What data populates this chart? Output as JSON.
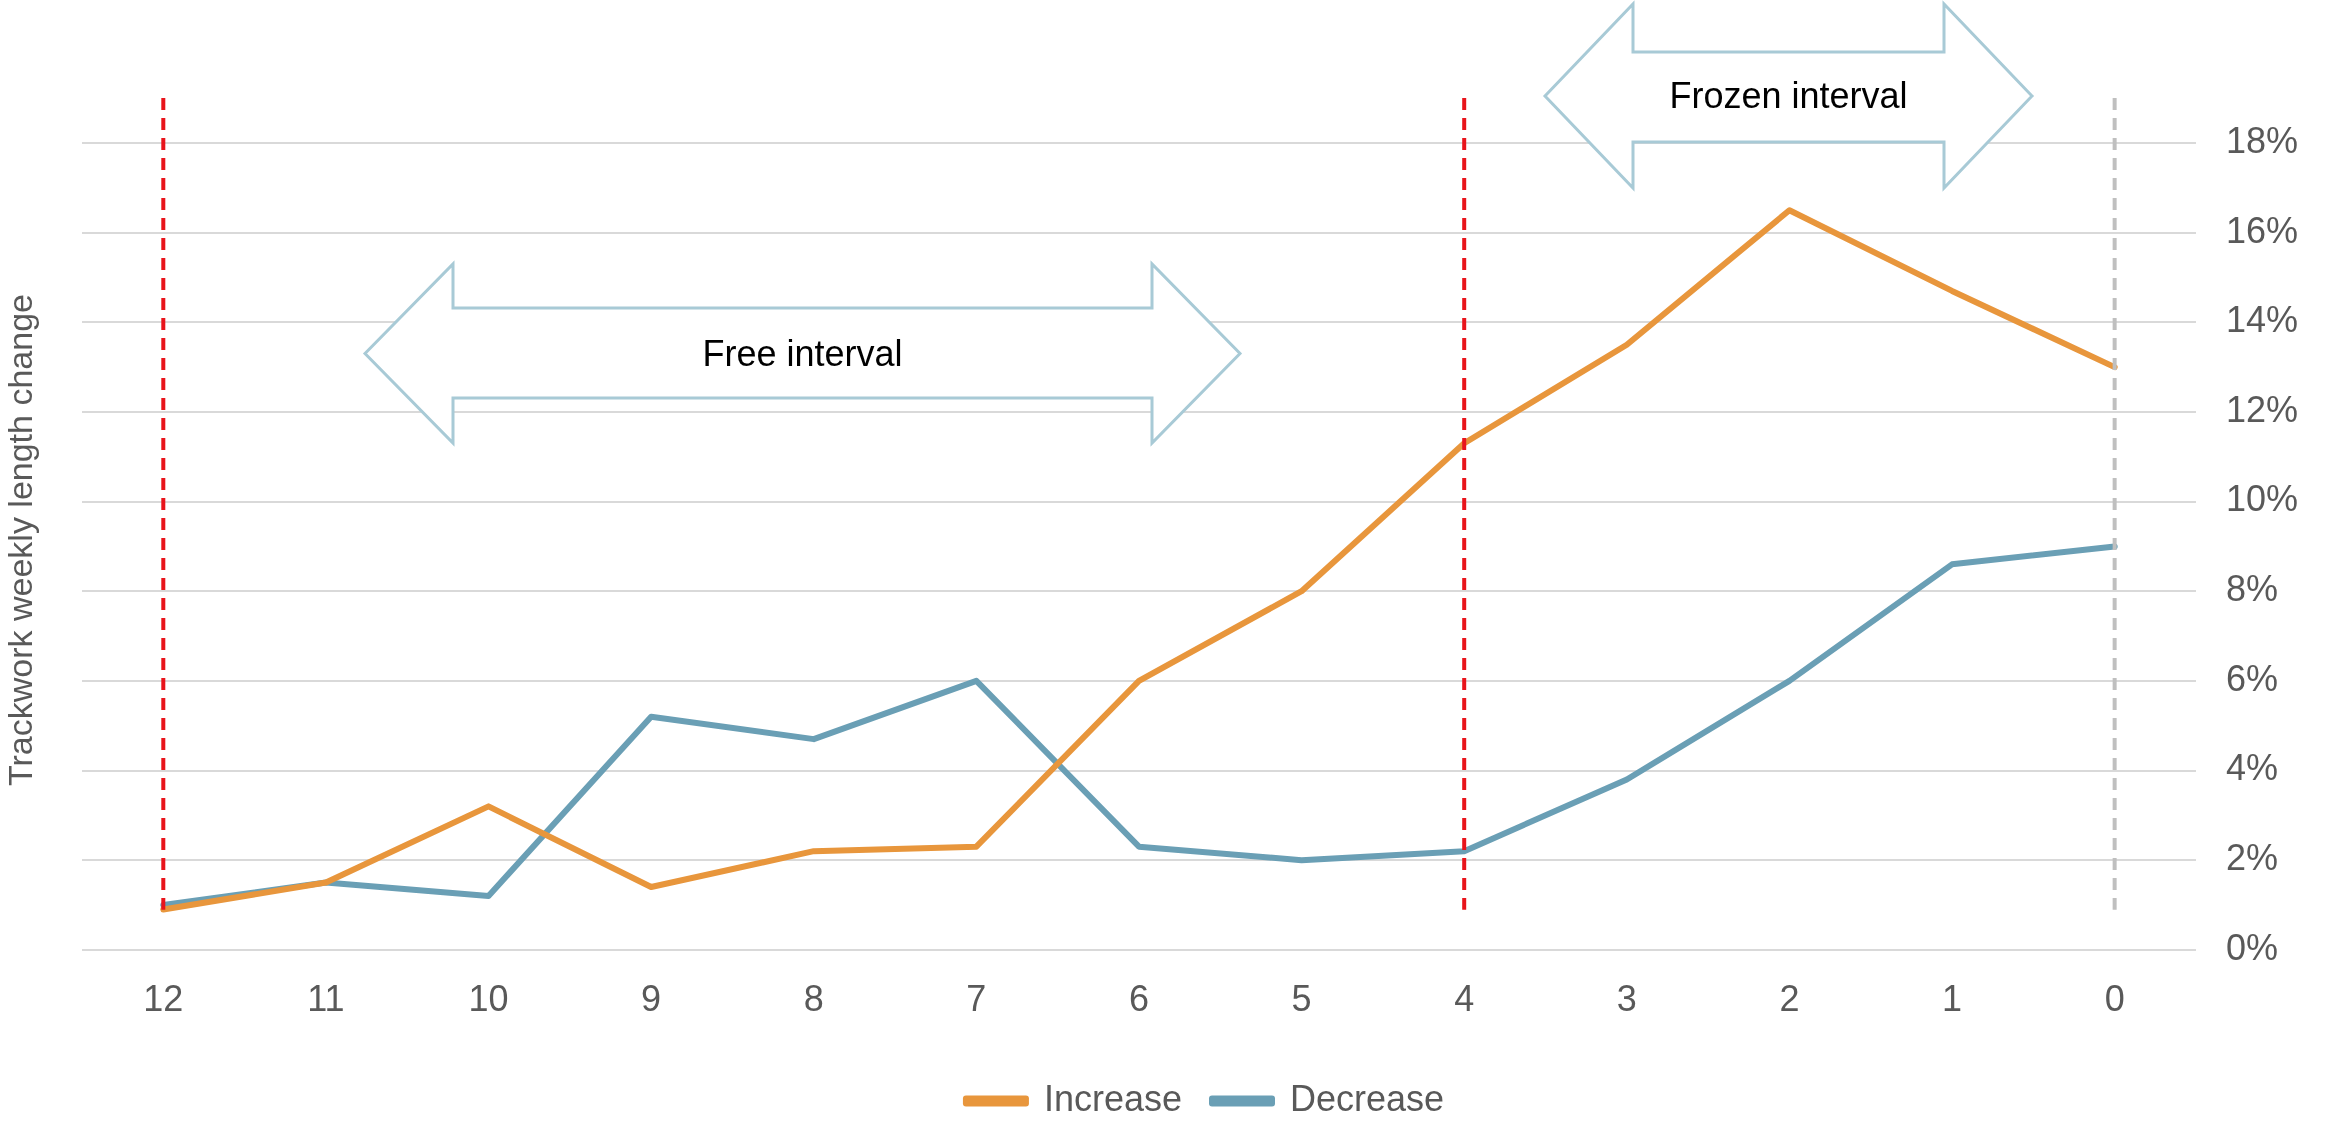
{
  "chart_data": {
    "type": "line",
    "ylabel": "Trackwork weekly length change",
    "categories": [
      "12",
      "11",
      "10",
      "9",
      "8",
      "7",
      "6",
      "5",
      "4",
      "3",
      "2",
      "1",
      "0"
    ],
    "series": [
      {
        "name": "Increase",
        "color": "#e8963c",
        "values": [
          0.9,
          1.5,
          3.2,
          1.4,
          2.2,
          2.3,
          6.0,
          8.0,
          11.3,
          13.5,
          16.5,
          14.7,
          13.0
        ]
      },
      {
        "name": "Decrease",
        "color": "#6a9fb5",
        "values": [
          1.0,
          1.5,
          1.2,
          5.2,
          4.7,
          6.0,
          2.3,
          2.0,
          2.2,
          3.8,
          6.0,
          8.6,
          9.0
        ]
      }
    ],
    "ylim": [
      0,
      18
    ],
    "yticks": [
      {
        "value": 0,
        "label": "0%"
      },
      {
        "value": 2,
        "label": "2%"
      },
      {
        "value": 4,
        "label": "4%"
      },
      {
        "value": 6,
        "label": "6%"
      },
      {
        "value": 8,
        "label": "8%"
      },
      {
        "value": 10,
        "label": "10%"
      },
      {
        "value": 12,
        "label": "12%"
      },
      {
        "value": 14,
        "label": "14%"
      },
      {
        "value": 16,
        "label": "16%"
      },
      {
        "value": 18,
        "label": "18%"
      }
    ],
    "grid": "y",
    "legend": "bottom",
    "marker": "none",
    "line_style": "solid",
    "ref_lines": [
      {
        "axis": "x",
        "value": "12",
        "color": "#e8141b",
        "line_style": "dashed"
      },
      {
        "axis": "x",
        "value": "4",
        "color": "#e8141b",
        "line_style": "dashed"
      },
      {
        "axis": "x",
        "value": "0",
        "color": "#bfbfbf",
        "line_style": "dashed"
      }
    ],
    "annotations": [
      "Free interval",
      "Frozen interval"
    ]
  }
}
